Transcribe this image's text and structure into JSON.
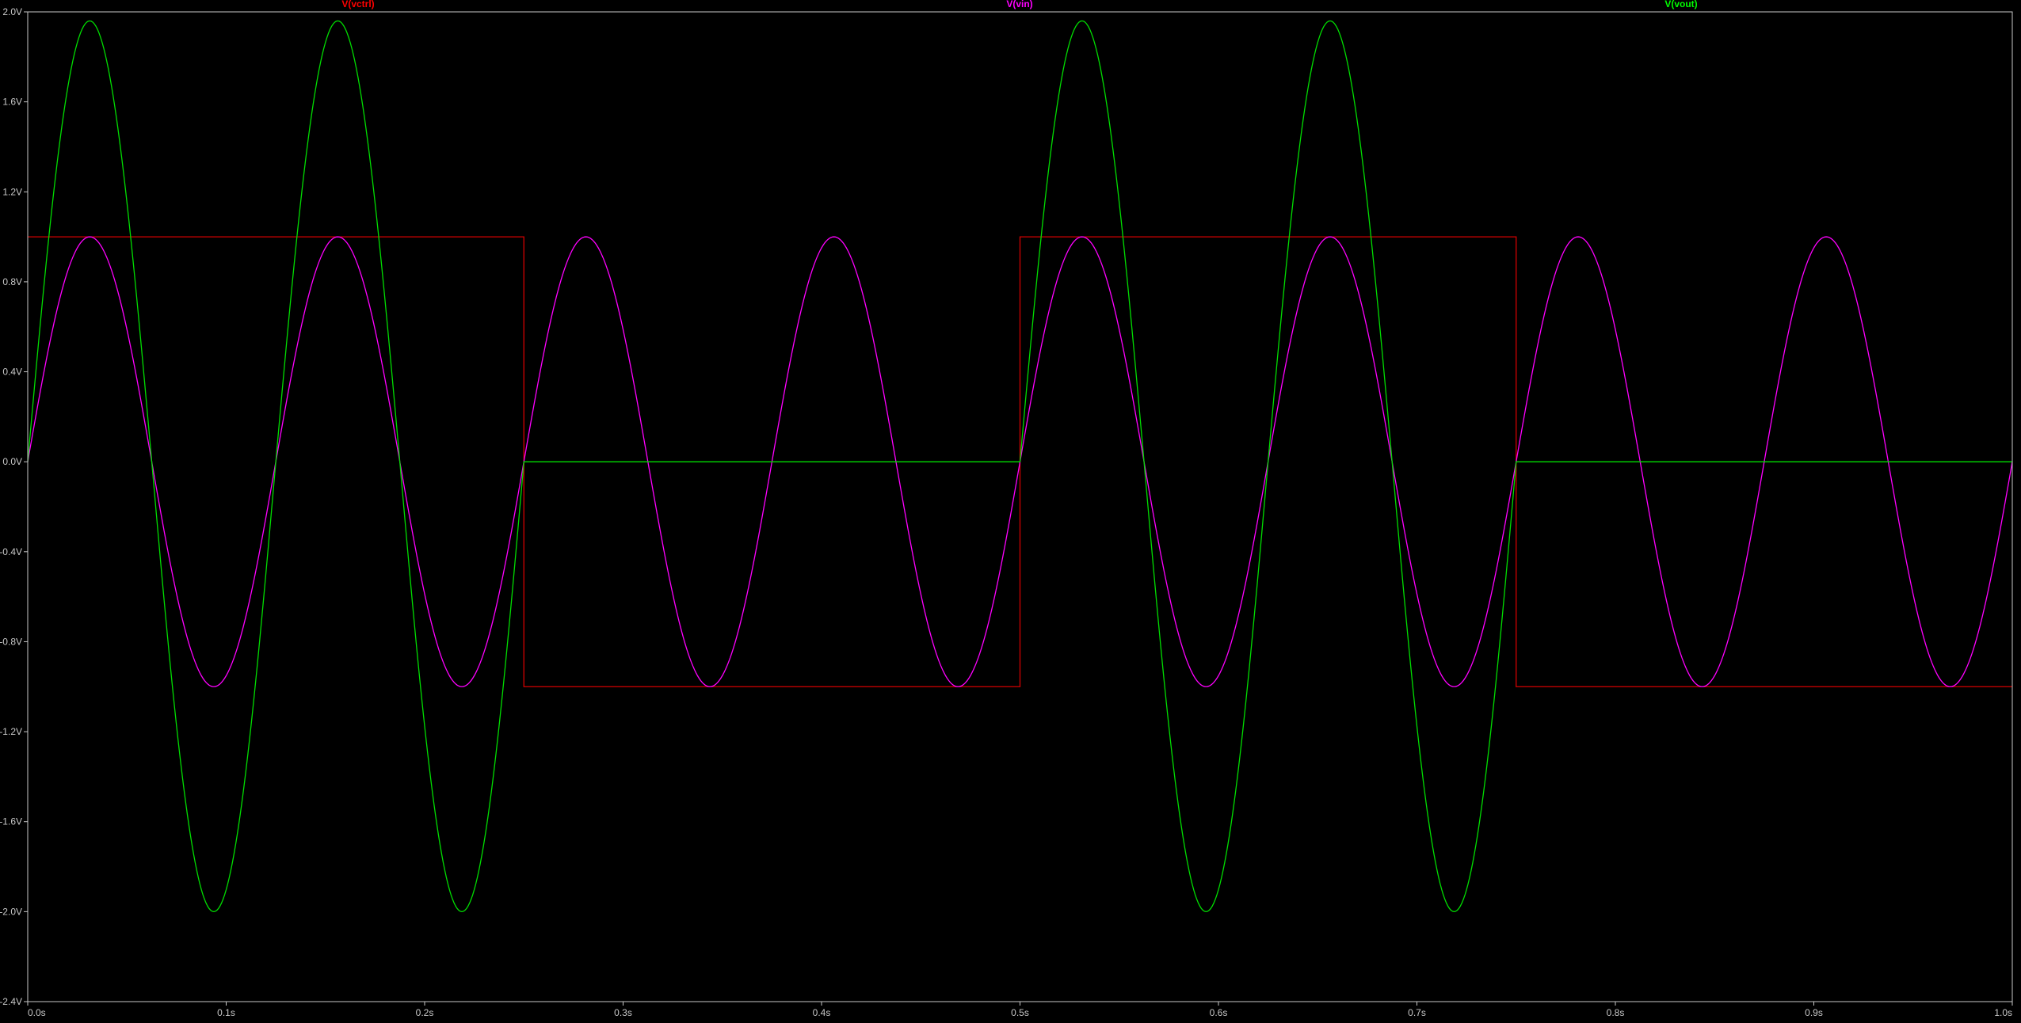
{
  "chart_data": {
    "type": "line",
    "x_unit": "s",
    "y_unit": "V",
    "xlim": [
      0.0,
      1.0
    ],
    "ylim": [
      -2.4,
      2.0
    ],
    "x_ticks": [
      0.0,
      0.1,
      0.2,
      0.3,
      0.4,
      0.5,
      0.6,
      0.7,
      0.8,
      0.9,
      1.0
    ],
    "x_tick_labels": [
      "0.0s",
      "0.1s",
      "0.2s",
      "0.3s",
      "0.4s",
      "0.5s",
      "0.6s",
      "0.7s",
      "0.8s",
      "0.9s",
      "1.0s"
    ],
    "y_ticks": [
      2.0,
      1.6,
      1.2,
      0.8,
      0.4,
      0.0,
      -0.4,
      -0.8,
      -1.2,
      -1.6,
      -2.0,
      -2.4
    ],
    "y_tick_labels": [
      "2.0V",
      "1.6V",
      "1.2V",
      "0.8V",
      "0.4V",
      "0.0V",
      "-0.4V",
      "-0.8V",
      "-1.2V",
      "-1.6V",
      "-2.0V",
      "-2.4V"
    ],
    "grid": false,
    "legend": "top",
    "series": [
      {
        "name": "V(vctrl)",
        "color": "#ff0000",
        "trace_color": "#d40000",
        "x": [
          0.0,
          0.25,
          0.25,
          0.5,
          0.5,
          0.75,
          0.75,
          1.0
        ],
        "y": [
          1.0,
          1.0,
          -1.0,
          -1.0,
          1.0,
          1.0,
          -1.0,
          -1.0
        ]
      },
      {
        "name": "V(vin)",
        "color": "#ff00ff",
        "trace_color": "#ff00ff",
        "x": [
          0.0,
          0.03125,
          0.0625,
          0.09375,
          0.125,
          0.15625,
          0.1875,
          0.21875,
          0.25,
          0.28125,
          0.3125,
          0.34375,
          0.375,
          0.40625,
          0.4375,
          0.46875,
          0.5,
          0.53125,
          0.5625,
          0.59375,
          0.625,
          0.65625,
          0.6875,
          0.71875,
          0.75,
          0.78125,
          0.8125,
          0.84375,
          0.875,
          0.90625,
          0.9375,
          0.96875,
          1.0
        ],
        "y": [
          0.0,
          1.0,
          0.0,
          -1.0,
          0.0,
          1.0,
          0.0,
          -1.0,
          0.0,
          1.0,
          0.0,
          -1.0,
          0.0,
          1.0,
          0.0,
          -1.0,
          0.0,
          1.0,
          0.0,
          -1.0,
          0.0,
          1.0,
          0.0,
          -1.0,
          0.0,
          1.0,
          0.0,
          -1.0,
          0.0,
          1.0,
          0.0,
          -1.0,
          0.0
        ]
      },
      {
        "name": "V(vout)",
        "color": "#00ff00",
        "trace_color": "#00dd00",
        "x": [
          0.0,
          0.03125,
          0.0625,
          0.09375,
          0.125,
          0.15625,
          0.1875,
          0.21875,
          0.25,
          0.28125,
          0.3125,
          0.34375,
          0.375,
          0.40625,
          0.4375,
          0.46875,
          0.5,
          0.53125,
          0.5625,
          0.59375,
          0.625,
          0.65625,
          0.6875,
          0.71875,
          0.75,
          0.78125,
          0.8125,
          0.84375,
          0.875,
          0.90625,
          0.9375,
          0.96875,
          1.0
        ],
        "y": [
          0.0,
          1.96,
          0.0,
          -2.0,
          0.0,
          1.96,
          0.0,
          -2.0,
          0.0,
          0.0,
          0.0,
          0.0,
          0.0,
          0.0,
          0.0,
          0.0,
          0.0,
          1.96,
          0.0,
          -2.0,
          0.0,
          1.96,
          0.0,
          -2.0,
          0.0,
          0.0,
          0.0,
          0.0,
          0.0,
          0.0,
          0.0,
          0.0,
          0.0
        ]
      }
    ]
  },
  "style": {
    "background": "#000000",
    "frame_color": "#c8c8c8",
    "tick_label_color": "#c8c8c8"
  }
}
